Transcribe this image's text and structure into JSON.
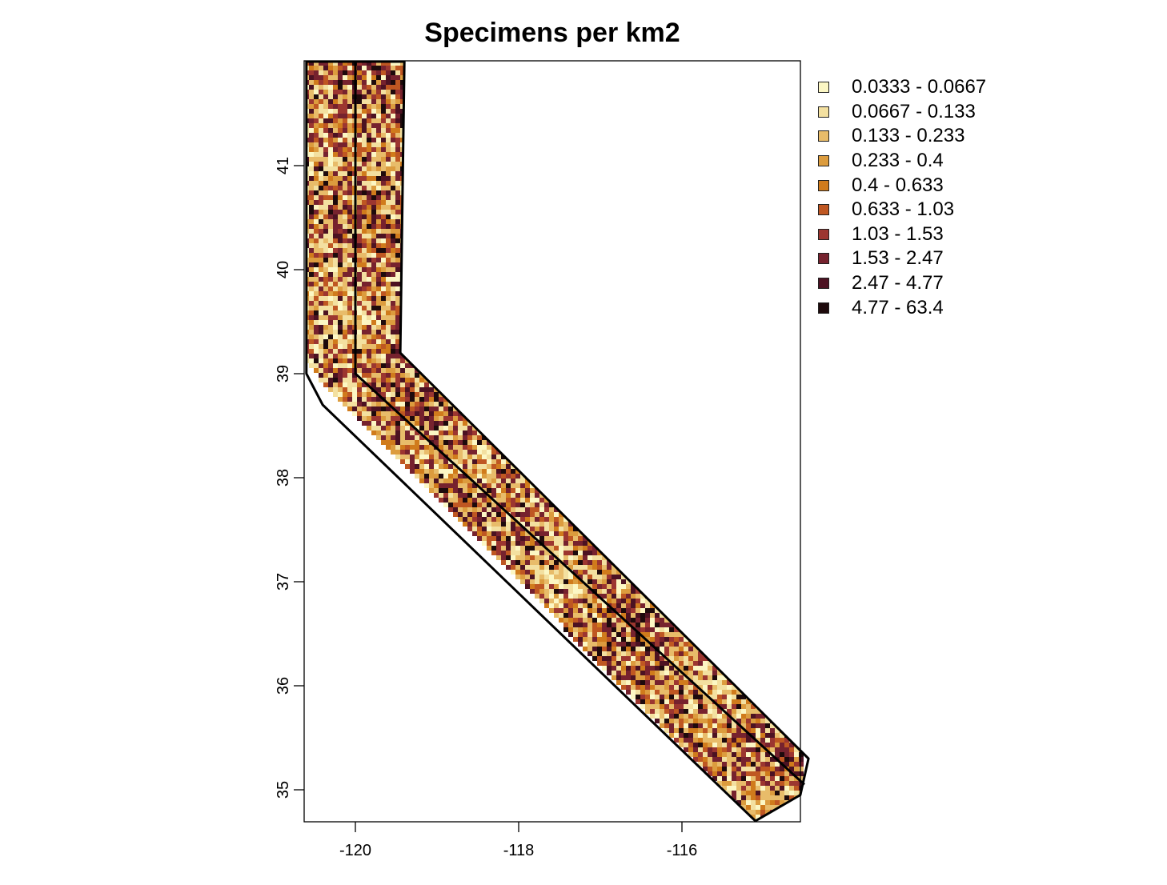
{
  "chart_data": {
    "type": "heatmap",
    "title": "Specimens per km2",
    "xlabel": "",
    "ylabel": "",
    "x_ticks": [
      "-120",
      "-118",
      "-116"
    ],
    "y_ticks": [
      "35",
      "36",
      "37",
      "38",
      "39",
      "40",
      "41"
    ],
    "xlim": [
      -120.6,
      -114.5
    ],
    "ylim": [
      34.7,
      42.0
    ],
    "legend_position": "right",
    "legend": [
      {
        "label": "0.0333 - 0.0667",
        "color": "#fcf7c4"
      },
      {
        "label": "0.0667 - 0.133",
        "color": "#f3e0a0"
      },
      {
        "label": "0.133 - 0.233",
        "color": "#e8bc6a"
      },
      {
        "label": "0.233 - 0.4",
        "color": "#dc9c3e"
      },
      {
        "label": "0.4 - 0.633",
        "color": "#d07b1c"
      },
      {
        "label": "0.633 - 1.03",
        "color": "#bf5722"
      },
      {
        "label": "1.03 - 1.53",
        "color": "#9c3630"
      },
      {
        "label": "1.53 - 2.47",
        "color": "#76222e"
      },
      {
        "label": "2.47 - 4.77",
        "color": "#4c1222"
      },
      {
        "label": "4.77 - 63.4",
        "color": "#1e0a0c"
      }
    ],
    "regions": [
      {
        "polygon": [
          [
            -120.6,
            42.0
          ],
          [
            -119.4,
            42.0
          ],
          [
            -119.45,
            39.2
          ],
          [
            -114.45,
            35.3
          ],
          [
            -114.55,
            34.95
          ],
          [
            -115.1,
            34.7
          ],
          [
            -120.4,
            38.7
          ],
          [
            -120.6,
            39.0
          ]
        ]
      }
    ],
    "boundaries": [
      {
        "points": [
          [
            -120.0,
            42.0
          ],
          [
            -120.0,
            39.0
          ],
          [
            -114.5,
            35.05
          ]
        ]
      }
    ]
  }
}
